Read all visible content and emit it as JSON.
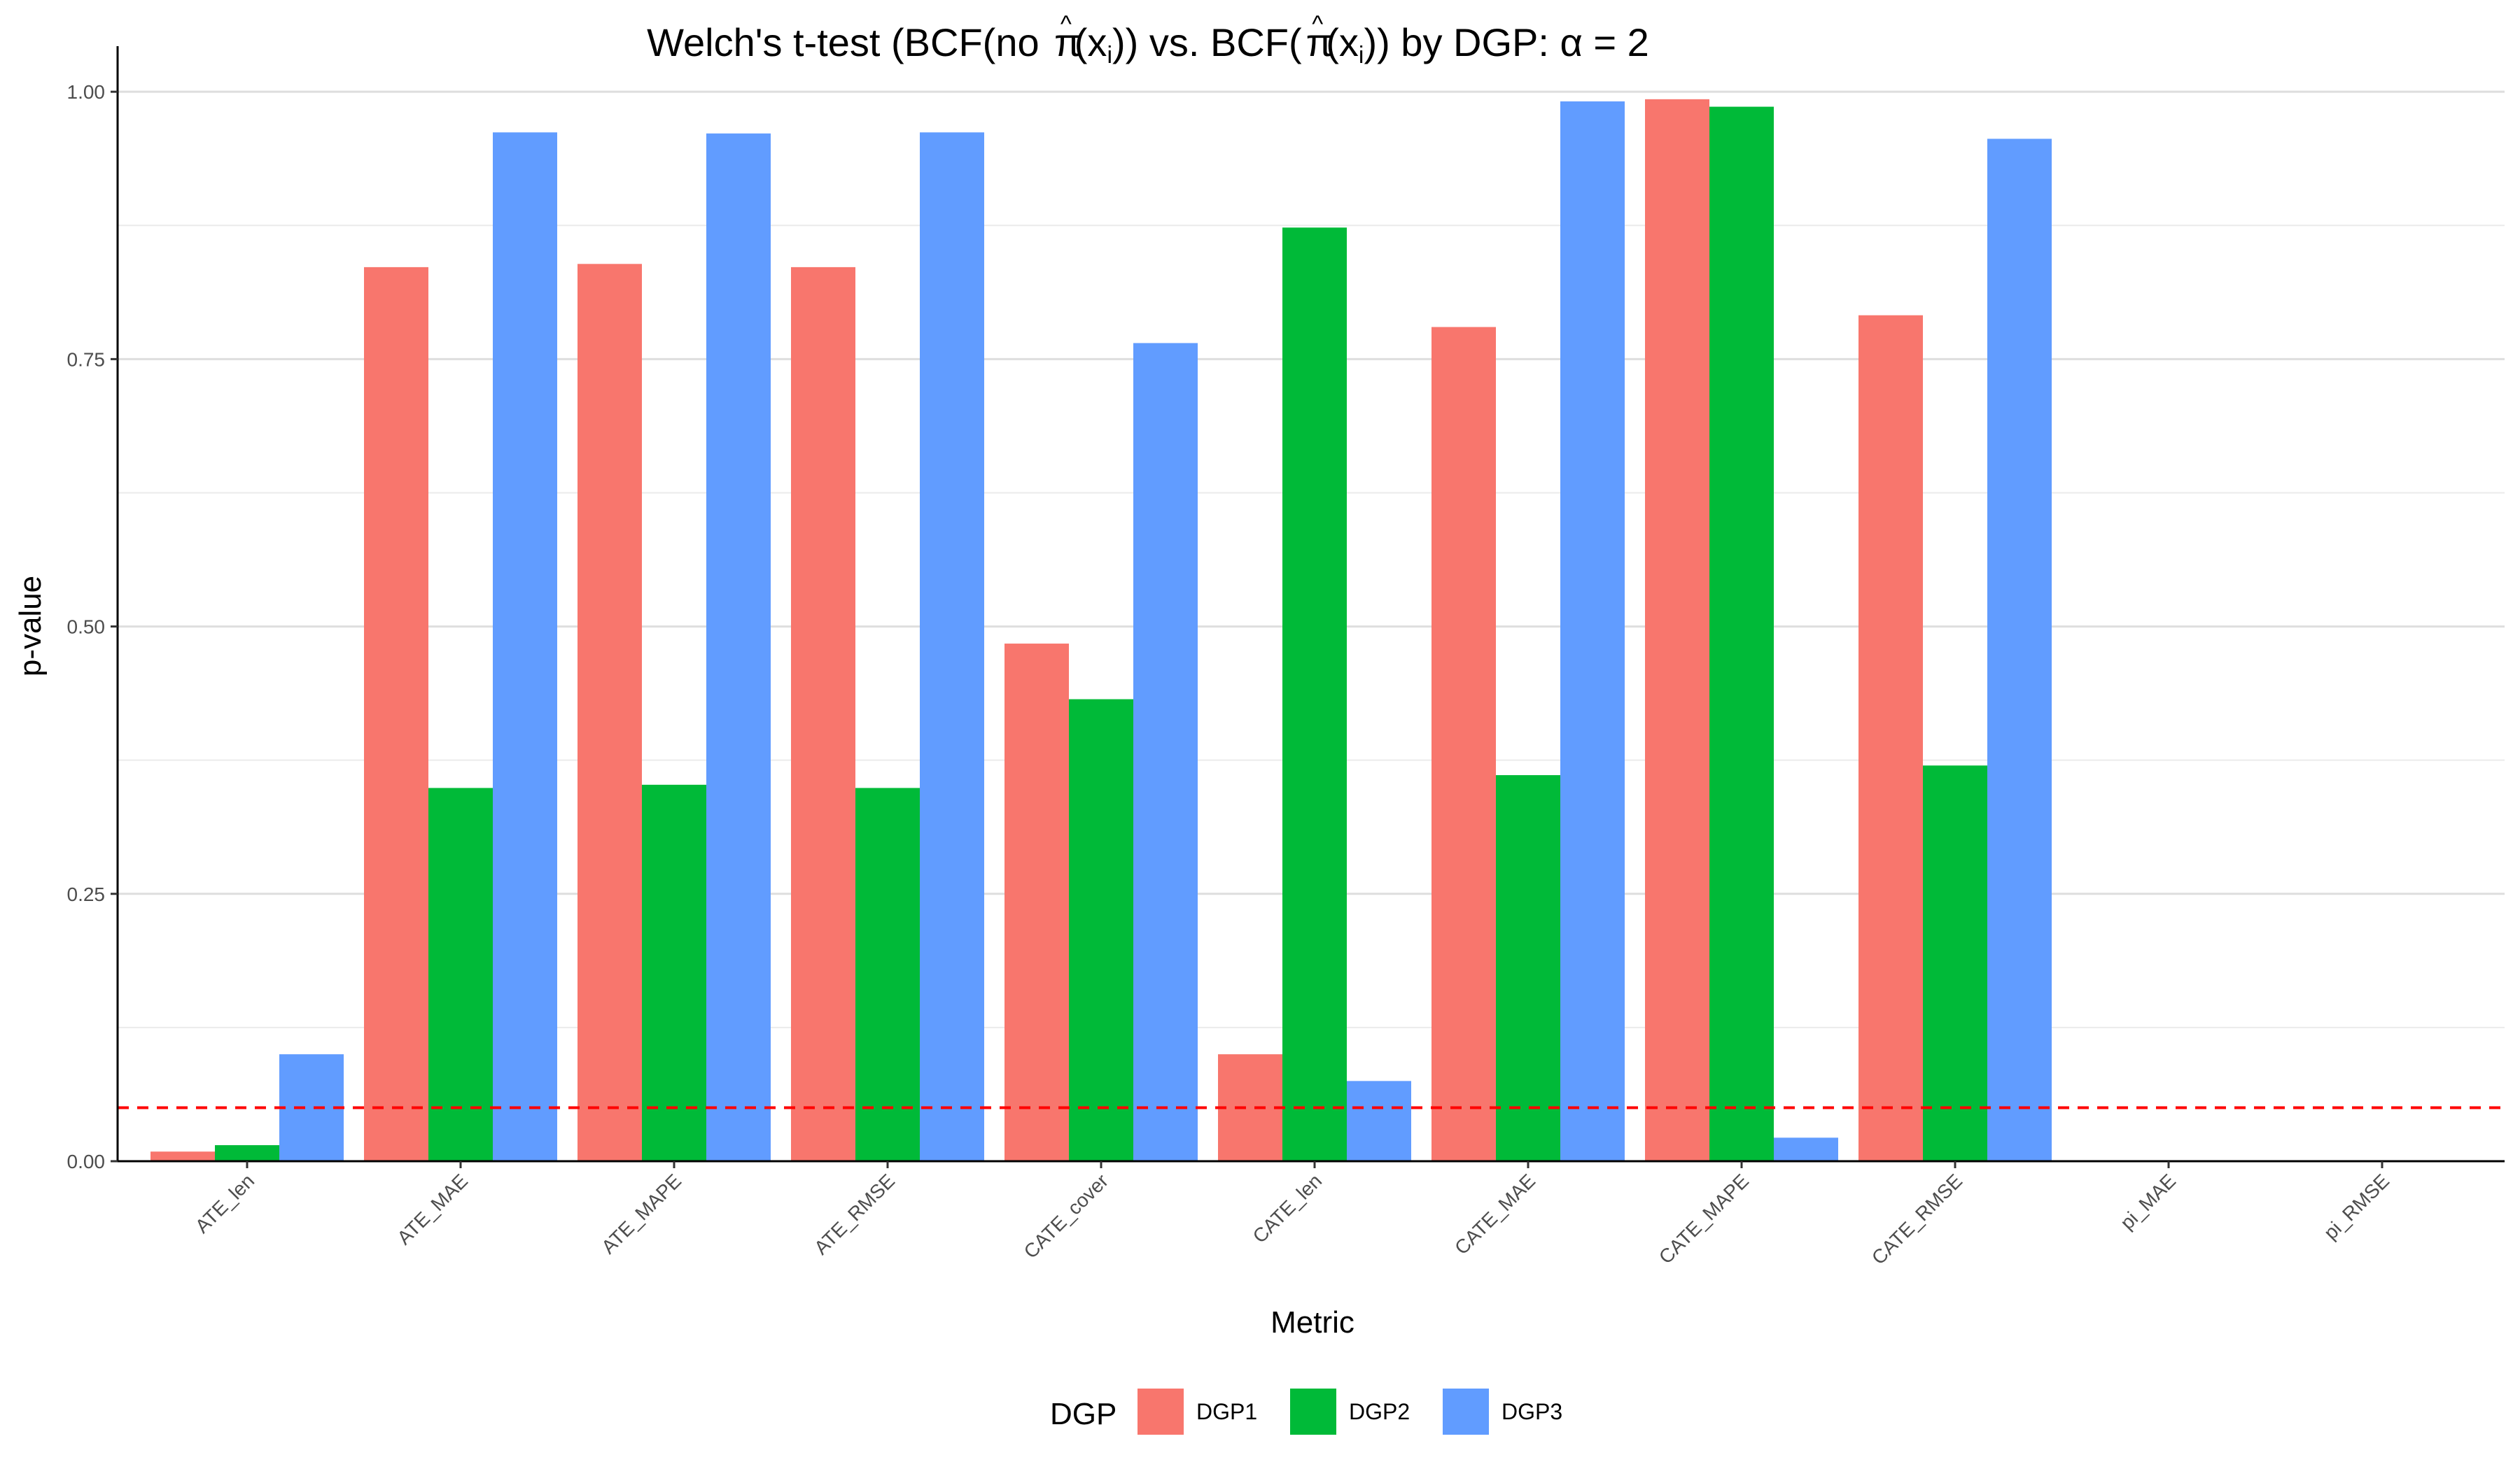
{
  "chart_data": {
    "type": "bar",
    "title": {
      "prefix": "Welch's t-test (BCF(no ",
      "pi1": "π",
      "hat": "^",
      "arg1": "(x",
      "sub1": "i",
      "close1": ")) vs. BCF(",
      "pi2": "π",
      "arg2": "(x",
      "sub2": "i",
      "suffix": ")) by DGP: α = 2"
    },
    "xlabel": "Metric",
    "ylabel": "p-value",
    "ylim": [
      0,
      1.04
    ],
    "yticks": [
      0.0,
      0.25,
      0.5,
      0.75,
      1.0
    ],
    "ytick_labels": [
      "0.00",
      "0.25",
      "0.50",
      "0.75",
      "1.00"
    ],
    "minor_gridlines": [
      0.125,
      0.375,
      0.625,
      0.875
    ],
    "reference_line": {
      "value": 0.05,
      "color": "#ff0000",
      "style": "dashed"
    },
    "categories": [
      "ATE_len",
      "ATE_MAE",
      "ATE_MAPE",
      "ATE_RMSE",
      "CATE_cover",
      "CATE_len",
      "CATE_MAE",
      "CATE_MAPE",
      "CATE_RMSE",
      "pi_MAE",
      "pi_RMSE"
    ],
    "series": [
      {
        "name": "DGP1",
        "color": "#f8766d",
        "values": [
          0.009,
          0.836,
          0.839,
          0.836,
          0.484,
          0.1,
          0.78,
          0.993,
          0.791,
          null,
          null
        ]
      },
      {
        "name": "DGP2",
        "color": "#00ba38",
        "values": [
          0.015,
          0.349,
          0.352,
          0.349,
          0.432,
          0.873,
          0.361,
          0.986,
          0.37,
          null,
          null
        ]
      },
      {
        "name": "DGP3",
        "color": "#619cff",
        "values": [
          0.1,
          0.962,
          0.961,
          0.962,
          0.765,
          0.075,
          0.991,
          0.022,
          0.956,
          null,
          null
        ]
      }
    ],
    "legend": {
      "title": "DGP",
      "position": "bottom"
    },
    "grid": true
  }
}
